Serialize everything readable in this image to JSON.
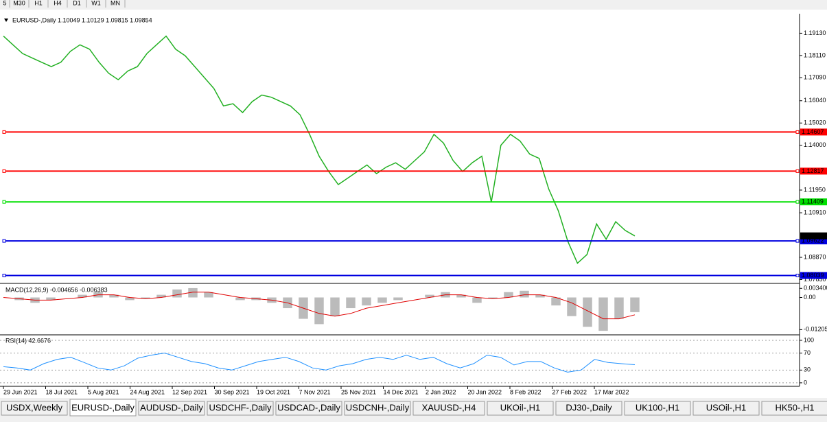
{
  "toolbar": {
    "timeframes": [
      "5",
      "M30",
      "H1",
      "H4",
      "D1",
      "W1",
      "MN"
    ]
  },
  "main_chart": {
    "header": "EURUSD-,Daily  1.10049 1.10129 1.09815 1.09854",
    "ylim": [
      1.0774,
      1.1996
    ],
    "yticks": [
      {
        "value": 1.1913,
        "label": "1.19130"
      },
      {
        "value": 1.1811,
        "label": "1.18110"
      },
      {
        "value": 1.1709,
        "label": "1.17090"
      },
      {
        "value": 1.1604,
        "label": "1.16040"
      },
      {
        "value": 1.1502,
        "label": "1.15020"
      },
      {
        "value": 1.14,
        "label": "1.14000"
      },
      {
        "value": 1.1195,
        "label": "1.11950"
      },
      {
        "value": 1.1091,
        "label": "1.10910"
      },
      {
        "value": 1.0887,
        "label": "1.08870"
      },
      {
        "value": 1.0785,
        "label": "1.07850"
      }
    ],
    "levels": [
      {
        "value": 1.14607,
        "color": "#ff0000"
      },
      {
        "value": 1.12817,
        "color": "#ff0000"
      },
      {
        "value": 1.11409,
        "color": "#00e000"
      },
      {
        "value": 1.09622,
        "color": "#0000e0"
      },
      {
        "value": 1.08039,
        "color": "#0000e0"
      }
    ],
    "current_price": 1.09854,
    "line_color": "#22b022",
    "close": [
      1.19,
      1.186,
      1.182,
      1.18,
      1.178,
      1.176,
      1.178,
      1.183,
      1.186,
      1.184,
      1.178,
      1.173,
      1.17,
      1.174,
      1.176,
      1.182,
      1.186,
      1.19,
      1.184,
      1.181,
      1.176,
      1.171,
      1.166,
      1.158,
      1.159,
      1.155,
      1.16,
      1.163,
      1.162,
      1.16,
      1.158,
      1.154,
      1.145,
      1.135,
      1.128,
      1.122,
      1.125,
      1.128,
      1.131,
      1.127,
      1.13,
      1.132,
      1.129,
      1.133,
      1.137,
      1.145,
      1.141,
      1.133,
      1.128,
      1.132,
      1.135,
      1.114,
      1.14,
      1.145,
      1.142,
      1.136,
      1.134,
      1.12,
      1.11,
      1.096,
      1.086,
      1.09,
      1.104,
      1.097,
      1.105,
      1.101,
      1.0985
    ],
    "x_labels": [
      "29 Jun 2021",
      "18 Jul 2021",
      "5 Aug 2021",
      "24 Aug 2021",
      "12 Sep 2021",
      "30 Sep 2021",
      "19 Oct 2021",
      "7 Nov 2021",
      "25 Nov 2021",
      "14 Dec 2021",
      "2 Jan 2022",
      "20 Jan 2022",
      "8 Feb 2022",
      "27 Feb 2022",
      "17 Mar 2022"
    ]
  },
  "macd": {
    "label": "MACD(12,26,9) -0.004656 -0.006383",
    "ylim": [
      -0.0135,
      0.0045
    ],
    "yticks": [
      {
        "value": 0.0034,
        "label": "0.003400"
      },
      {
        "value": 0,
        "label": "0.00"
      },
      {
        "value": -0.01205,
        "label": "-0.01205"
      }
    ],
    "histogram": [
      0.0,
      -0.001,
      -0.002,
      -0.001,
      0.0,
      0.001,
      0.002,
      0.001,
      -0.001,
      -0.0005,
      0.001,
      0.003,
      0.0035,
      0.002,
      0.0,
      -0.001,
      -0.001,
      -0.002,
      -0.004,
      -0.008,
      -0.01,
      -0.007,
      -0.004,
      -0.003,
      -0.002,
      -0.001,
      0.0,
      0.001,
      0.002,
      0.001,
      -0.002,
      -0.0005,
      0.002,
      0.0025,
      0.001,
      -0.003,
      -0.007,
      -0.011,
      -0.0125,
      -0.008,
      -0.0055
    ],
    "signal": [
      0.0,
      -0.0005,
      -0.001,
      -0.001,
      -0.0005,
      0.0,
      0.001,
      0.001,
      0.0,
      -0.0005,
      0.0,
      0.001,
      0.002,
      0.002,
      0.001,
      0.0,
      -0.0005,
      -0.001,
      -0.002,
      -0.004,
      -0.006,
      -0.007,
      -0.006,
      -0.004,
      -0.003,
      -0.002,
      -0.001,
      0.0,
      0.001,
      0.001,
      0.0,
      -0.0005,
      0.0,
      0.001,
      0.001,
      0.0,
      -0.002,
      -0.005,
      -0.008,
      -0.008,
      -0.0065
    ]
  },
  "rsi": {
    "label": "RSI(14) 42.6676",
    "ylim": [
      -5,
      108
    ],
    "yticks": [
      100,
      70,
      30,
      0
    ],
    "values": [
      38,
      35,
      30,
      45,
      55,
      60,
      48,
      35,
      30,
      40,
      58,
      65,
      70,
      60,
      50,
      45,
      35,
      30,
      40,
      50,
      55,
      60,
      50,
      35,
      30,
      40,
      45,
      55,
      60,
      55,
      65,
      55,
      60,
      45,
      35,
      45,
      65,
      60,
      42,
      50,
      50,
      35,
      25,
      30,
      55,
      48,
      45,
      42.6676
    ]
  },
  "tabs": [
    "USDX,Weekly",
    "EURUSD-,Daily",
    "AUDUSD-,Daily",
    "USDCHF-,Daily",
    "USDCAD-,Daily",
    "USDCNH-,Daily",
    "XAUUSD-,H4",
    "UKOil-,H1",
    "DJ30-,Daily",
    "UK100-,H1",
    "USOil-,H1",
    "HK50-,H1"
  ],
  "active_tab": 1
}
